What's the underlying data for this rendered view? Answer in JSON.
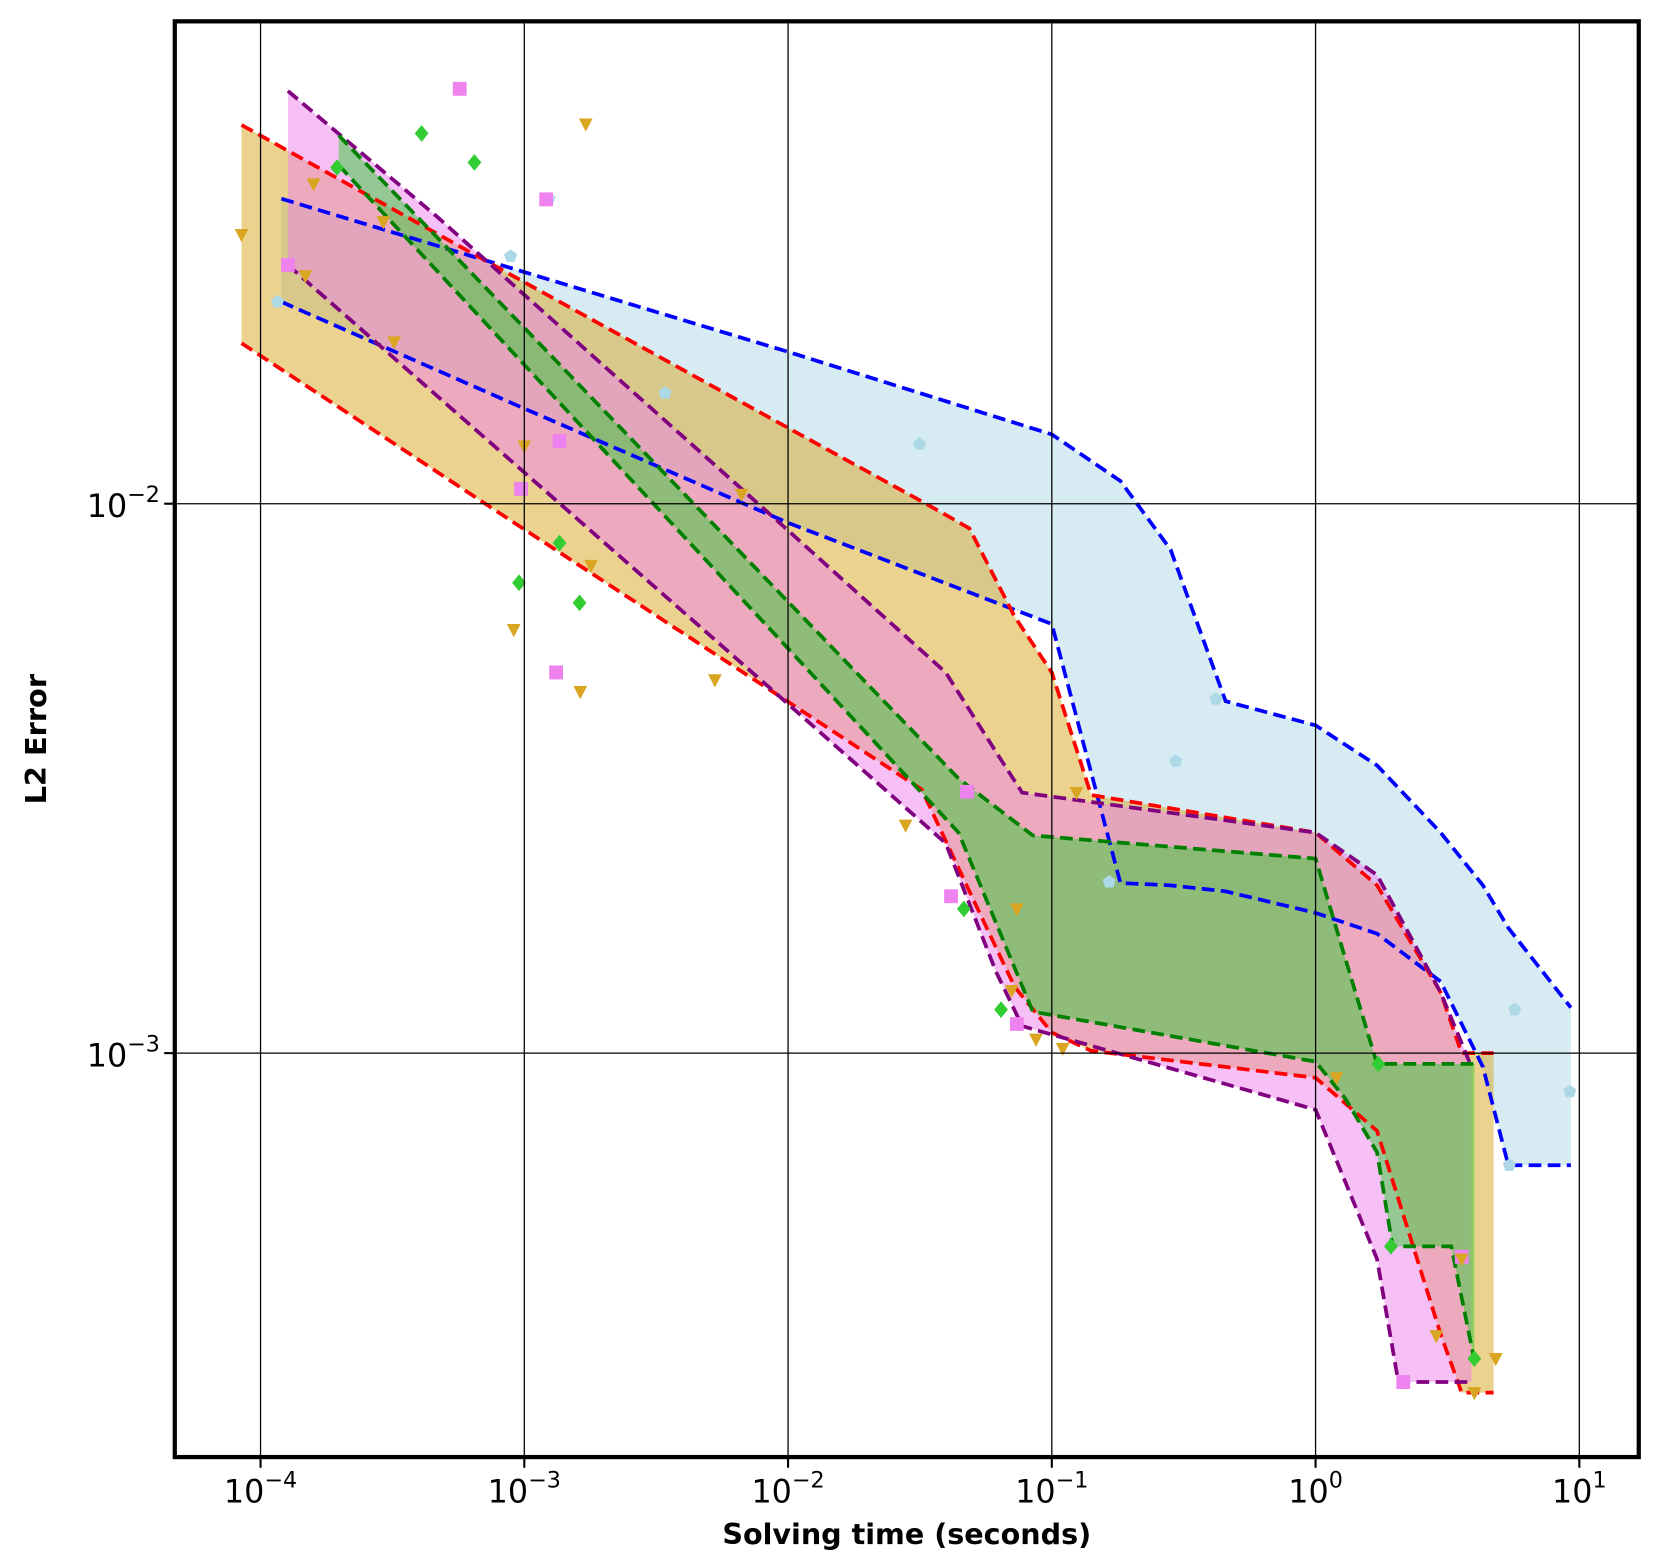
{
  "chart_data": {
    "type": "area",
    "x_label": "Solving time (seconds)",
    "y_label": "L2 Error",
    "log_x": true,
    "log_y": true,
    "grid": true,
    "xlim": [
      4.73e-05,
      16.8
    ],
    "ylim": [
      0.000184,
      0.0755
    ],
    "xticks": [
      {
        "value": 0.0001,
        "label": "10−4"
      },
      {
        "value": 0.001,
        "label": "10−3"
      },
      {
        "value": 0.01,
        "label": "10−2"
      },
      {
        "value": 0.1,
        "label": "10−1"
      },
      {
        "value": 1,
        "label": "100"
      },
      {
        "value": 10,
        "label": "101"
      }
    ],
    "yticks": [
      {
        "value": 0.001,
        "label": "10−3"
      },
      {
        "value": 0.01,
        "label": "10−2"
      }
    ],
    "series": [
      {
        "fill_color": "#add8e6",
        "line_color": "#0000ff",
        "x": [
          0.00012,
          0.001,
          0.01,
          0.1,
          0.182,
          0.282,
          0.456,
          1.0,
          1.71,
          2.98,
          4.31,
          5.38,
          9.29
        ],
        "upper": [
          0.0359,
          0.0264,
          0.0189,
          0.01337,
          0.011,
          0.00825,
          0.00437,
          0.00395,
          0.00334,
          0.00252,
          0.00202,
          0.00169,
          0.00121
        ],
        "lower": [
          0.0233,
          0.0149,
          0.00923,
          0.00604,
          0.00204,
          0.00202,
          0.00197,
          0.0018,
          0.00165,
          0.00135,
          0.000944,
          0.000625,
          0.000625
        ]
      },
      {
        "fill_color": "#daa520",
        "line_color": "#ff0000",
        "x": [
          8.47e-05,
          0.001,
          0.01,
          0.0321,
          0.0487,
          0.0723,
          0.1,
          0.141,
          1.0,
          1.71,
          2.98,
          3.58,
          4.73
        ],
        "upper": [
          0.0489,
          0.0253,
          0.01374,
          0.0101,
          0.00902,
          0.00623,
          0.00493,
          0.00295,
          0.00252,
          0.00202,
          0.00129,
          0.001,
          0.001
        ],
        "lower": [
          0.0196,
          0.00898,
          0.00436,
          0.00302,
          0.00197,
          0.00132,
          0.00109,
          0.00101,
          0.000902,
          0.000722,
          0.000308,
          0.000241,
          0.000241
        ]
      },
      {
        "fill_color": "#ee82ee",
        "line_color": "#800080",
        "x": [
          0.000127,
          0.000477,
          0.001,
          0.01,
          0.0396,
          0.0613,
          0.0772,
          1.0,
          1.71,
          2.06,
          2.98,
          3.9
        ],
        "upper": [
          0.0564,
          0.033,
          0.024,
          0.00894,
          0.00493,
          0.00354,
          0.00298,
          0.00252,
          0.00211,
          0.00179,
          0.00129,
          0.000944
        ],
        "lower": [
          0.0272,
          0.01557,
          0.0114,
          0.00432,
          0.00241,
          0.00141,
          0.00112,
          0.000789,
          0.000422,
          0.000252,
          0.000252,
          0.000252
        ]
      },
      {
        "fill_color": "#32cd32",
        "line_color": "#008000",
        "x": [
          0.000198,
          0.001,
          0.01,
          0.0443,
          0.0847,
          1.0,
          1.3,
          1.71,
          1.96,
          3.27,
          4.0
        ],
        "upper": [
          0.0468,
          0.0209,
          0.00663,
          0.00316,
          0.00249,
          0.00226,
          0.00148,
          0.000956,
          0.000956,
          0.000956,
          0.000956
        ],
        "lower": [
          0.0413,
          0.0179,
          0.00545,
          0.00252,
          0.00119,
          0.000965,
          0.000825,
          0.00066,
          0.000445,
          0.000445,
          0.000276
        ]
      }
    ],
    "markers": [
      {
        "color": "#add8e6",
        "shape": "pentagon",
        "x": [
          0.000116,
          0.000887,
          0.00124,
          0.00342,
          0.0315,
          0.165,
          0.295,
          0.419,
          5.69,
          9.2,
          5.43
        ],
        "y": [
          0.0233,
          0.0282,
          0.0359,
          0.0159,
          0.01284,
          0.00205,
          0.0034,
          0.00441,
          0.0012,
          0.000851,
          0.000625
        ]
      },
      {
        "color": "#ee82ee",
        "shape": "square",
        "x": [
          0.000127,
          0.000569,
          0.00121,
          0.00136,
          0.000972,
          0.00132,
          0.0415,
          0.0477,
          0.0737,
          3.58,
          2.15
        ],
        "y": [
          0.0272,
          0.0569,
          0.0358,
          0.013,
          0.01064,
          0.00493,
          0.00193,
          0.00299,
          0.00113,
          0.000426,
          0.000252
        ]
      },
      {
        "color": "#32cd32",
        "shape": "diamond",
        "x": [
          0.000195,
          0.000408,
          0.000647,
          0.000955,
          0.00136,
          0.00162,
          0.0464,
          0.0642,
          1.73,
          1.93,
          4.0
        ],
        "y": [
          0.0409,
          0.0472,
          0.0418,
          0.00718,
          0.00848,
          0.0066,
          0.00183,
          0.0012,
          0.000956,
          0.000445,
          0.000278
        ]
      },
      {
        "color": "#daa520",
        "shape": "triangle-down",
        "x": [
          8.47e-05,
          0.000159,
          0.000148,
          0.000292,
          0.000321,
          0.00171,
          0.001,
          0.000912,
          0.00179,
          0.00163,
          0.00528,
          0.00666,
          0.0279,
          0.0737,
          0.0704,
          0.0871,
          0.11,
          0.124,
          1.2,
          2.87,
          3.58,
          4.0,
          4.82
        ],
        "y": [
          0.0309,
          0.0382,
          0.026,
          0.0326,
          0.0197,
          0.0491,
          0.01273,
          0.0059,
          0.00772,
          0.00455,
          0.00478,
          0.0104,
          0.0026,
          0.00183,
          0.0013,
          0.00106,
          0.00102,
          0.00298,
          0.000902,
          0.000306,
          0.000422,
          0.000241,
          0.000278
        ]
      }
    ]
  }
}
